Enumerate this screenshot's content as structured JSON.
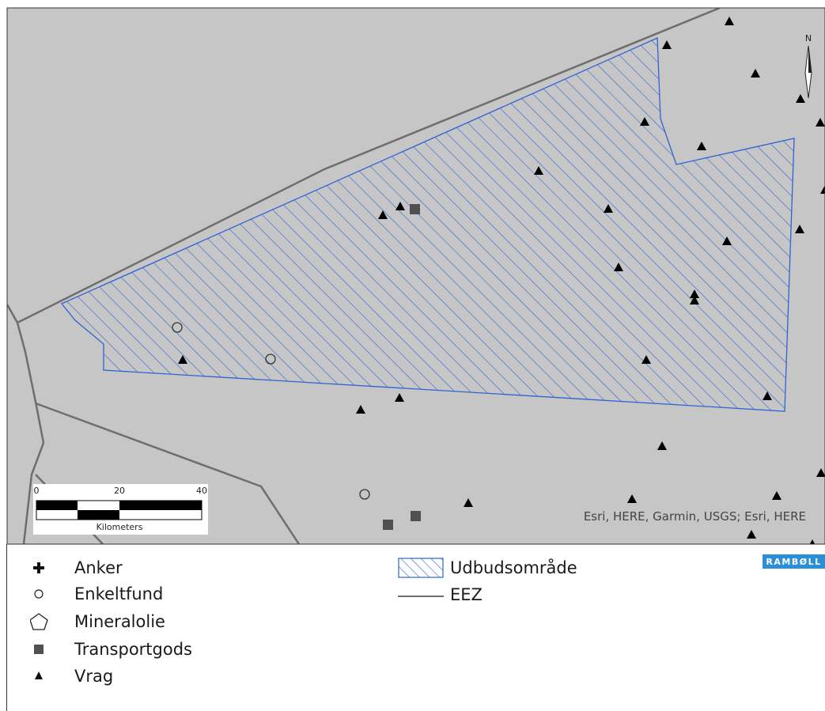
{
  "map": {
    "attribution": "Esri, HERE, Garmin, USGS; Esri, HERE",
    "north_label": "N",
    "background_color": "#c6c6c6",
    "area_outline_color": "#2f63d4",
    "eez_line_color": "#6e6e6e",
    "marker_color": "#000000",
    "transport_marker_color": "#505050"
  },
  "scale_bar": {
    "ticks": [
      "0",
      "20",
      "40"
    ],
    "unit_label": "Kilometers"
  },
  "legend": {
    "items": [
      {
        "label": "Anker",
        "icon": "cross-icon"
      },
      {
        "label": "Enkeltfund",
        "icon": "circle-icon"
      },
      {
        "label": "Mineralolie",
        "icon": "pentagon-icon"
      },
      {
        "label": "Transportgods",
        "icon": "square-icon"
      },
      {
        "label": "Vrag",
        "icon": "triangle-icon"
      }
    ],
    "area_items": [
      {
        "label": "Udbudsområde",
        "icon": "hatched-box-icon"
      },
      {
        "label": "EEZ",
        "icon": "line-icon"
      }
    ]
  },
  "logo": {
    "text": "RAMBØLL"
  }
}
